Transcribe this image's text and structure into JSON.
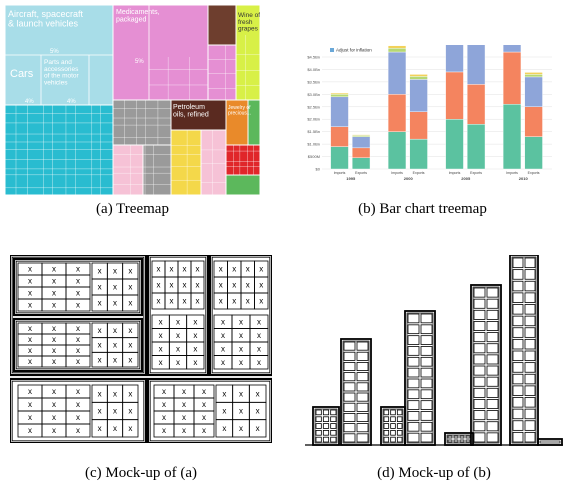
{
  "captions": {
    "a": "(a) Treemap",
    "b": "(b) Bar chart treemap",
    "c": "(c) Mock-up of (a)",
    "d": "(d) Mock-up of (b)"
  },
  "treemap": {
    "labels": {
      "aircraft": "Aircraft, spacecraft\n& launch vehicles",
      "medicaments": "Medicaments,\npackaged",
      "wine": "Wine of\nfresh\ngrapes",
      "cars": "Cars",
      "parts": "Parts and\naccessories\nof the motor\nvehicles",
      "petroleum": "Petroleum\noils, refined",
      "jewelry": "Jewelry of\nprecious...",
      "pct_aircraft": "5%",
      "pct_cars": "4%",
      "pct_parts": "4%",
      "pct_med": "5%"
    },
    "colors": {
      "lightblue": "#a8dde8",
      "cyan": "#29bcd0",
      "pink": "#e58fd3",
      "brown": "#6e3e2e",
      "lime": "#d8f047",
      "gray": "#9a9a9a",
      "darkbrown": "#5a2a20",
      "yellow": "#f4d84a",
      "orange": "#e98a2a",
      "red": "#e0262a",
      "green": "#5cb85c",
      "lightpink": "#f6c2d6"
    }
  },
  "bar_chart": {
    "legend": "Adjust for inflation",
    "y_ticks": [
      "$4.5Bn",
      "$4.0Bn",
      "$3.5Bn",
      "$3.0Bn",
      "$2.5Bn",
      "$2.0Bn",
      "$1.5Bn",
      "$1.0Bn",
      "$500M",
      "$0"
    ],
    "x_labels": [
      "Imports",
      "Exports",
      "Imports",
      "Exports",
      "Imports",
      "Exports",
      "Imports",
      "Exports"
    ],
    "year_labels": [
      "1995",
      "2000",
      "2005",
      "2010"
    ],
    "series_colors": [
      "#5bc2a0",
      "#f4845f",
      "#8ea5d9",
      "#b6d874",
      "#f2d15a"
    ],
    "bars": [
      [
        0.9,
        0.8,
        1.2,
        0.1,
        0.05
      ],
      [
        0.45,
        0.4,
        0.45,
        0.05,
        0.03
      ],
      [
        1.5,
        1.5,
        1.7,
        0.15,
        0.1
      ],
      [
        1.2,
        1.1,
        1.3,
        0.12,
        0.08
      ],
      [
        2.0,
        1.9,
        2.3,
        0.2,
        0.15
      ],
      [
        1.8,
        1.6,
        1.9,
        0.18,
        0.12
      ],
      [
        2.6,
        2.1,
        2.6,
        0.25,
        0.15
      ],
      [
        1.3,
        1.2,
        1.2,
        0.1,
        0.08
      ]
    ]
  },
  "mockup": {
    "cell_mark": "x"
  }
}
